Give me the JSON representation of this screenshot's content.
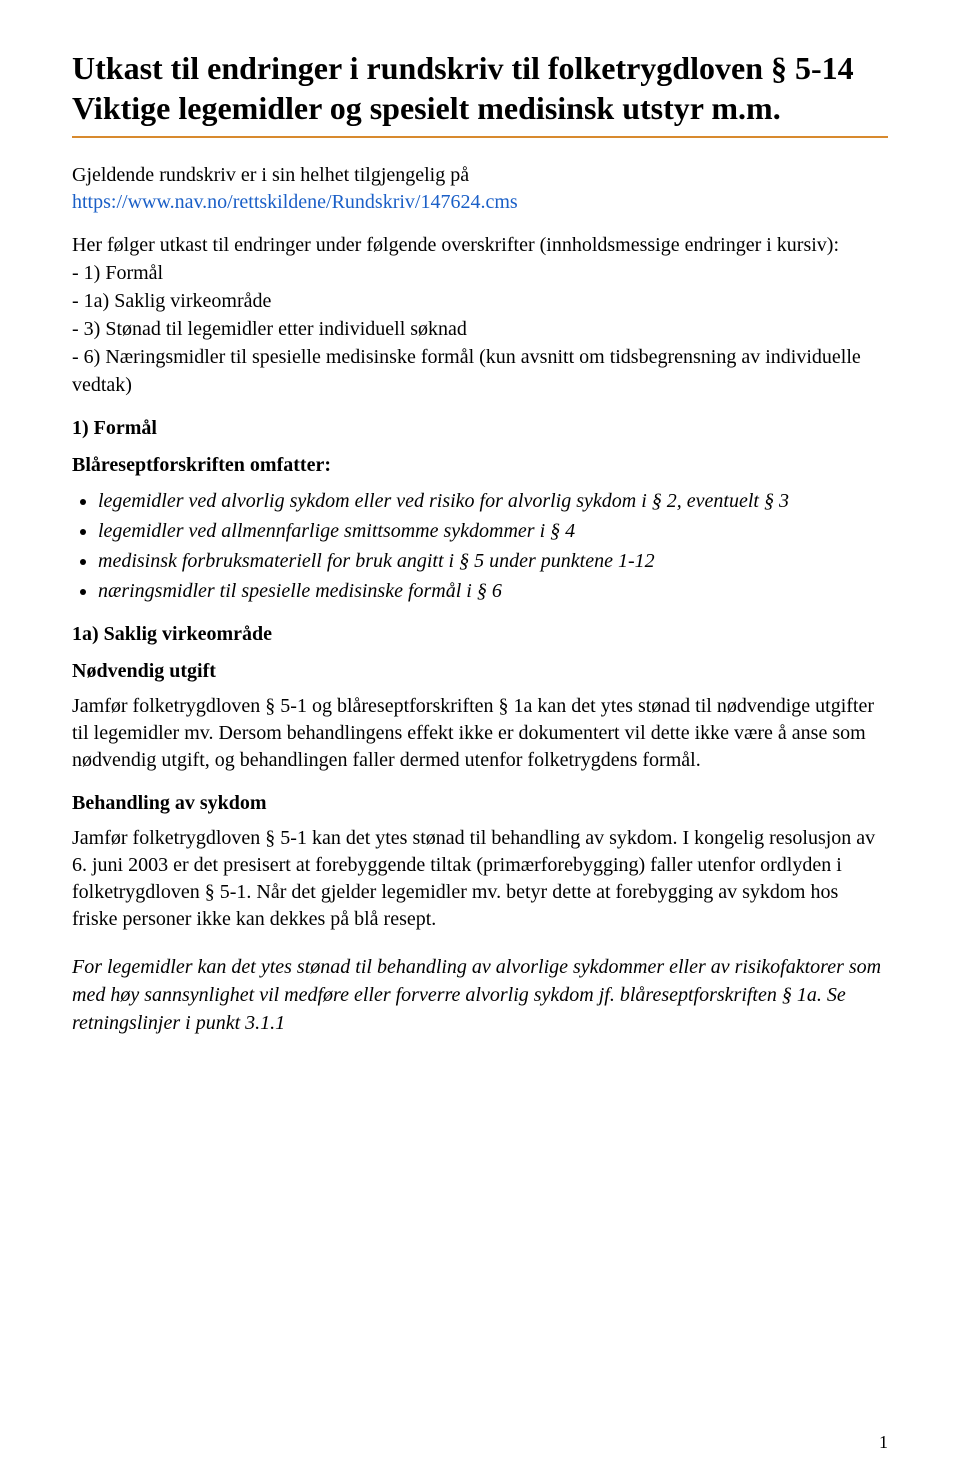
{
  "title": "Utkast til endringer i rundskriv til folketrygdloven § 5-14 Viktige legemidler og spesielt medisinsk utstyr m.m.",
  "intro_text": "Gjeldende rundskriv er i sin helhet tilgjengelig på",
  "link_text": "https://www.nav.no/rettskildene/Rundskriv/147624.cms",
  "lead_text": "Her følger utkast til endringer under følgende overskrifter (innholdsmessige endringer i kursiv):",
  "toc": [
    "- 1) Formål",
    "- 1a) Saklig virkeområde",
    "- 3) Stønad til legemidler etter individuell søknad",
    "- 6) Næringsmidler til spesielle medisinske formål (kun avsnitt om tidsbegrensning av individuelle vedtak)"
  ],
  "sec1_heading": "1) Formål",
  "sec1_lead": "Blåreseptforskriften omfatter:",
  "sec1_bullets": [
    "legemidler ved alvorlig sykdom eller ved risiko for alvorlig sykdom i § 2, eventuelt § 3",
    "legemidler ved allmennfarlige smittsomme sykdommer i § 4",
    "medisinsk forbruksmateriell for bruk angitt i § 5 under punktene 1-12",
    "næringsmidler til spesielle medisinske formål i § 6"
  ],
  "sec1a_heading": "1a) Saklig virkeområde",
  "sec1a_sub1": "Nødvendig utgift",
  "sec1a_p1": "Jamfør folketrygdloven § 5-1 og blåreseptforskriften § 1a kan det ytes stønad til nødvendige utgifter til legemidler mv. Dersom behandlingens effekt ikke er dokumentert vil dette ikke være å anse som nødvendig utgift, og behandlingen faller dermed utenfor folketrygdens formål.",
  "sec1a_sub2": "Behandling av sykdom",
  "sec1a_p2": "Jamfør folketrygdloven § 5-1 kan det ytes stønad til behandling av sykdom. I kongelig resolusjon av 6. juni 2003 er det presisert at forebyggende tiltak (primærforebygging) faller utenfor ordlyden i folketrygdloven § 5-1. Når det gjelder legemidler mv. betyr dette at forebygging av sykdom hos friske personer ikke kan dekkes på blå resept.",
  "sec1a_p3_italic": "For legemidler kan det ytes stønad til behandling av alvorlige sykdommer eller av risikofaktorer som med høy sannsynlighet vil medføre eller forverre alvorlig sykdom jf. blåreseptforskriften § 1a. Se retningslinjer i punkt 3.1.1",
  "page_number": "1",
  "colors": {
    "title_rule": "#d88a2e",
    "link": "#1a5fc7",
    "text": "#000000",
    "background": "#ffffff"
  }
}
